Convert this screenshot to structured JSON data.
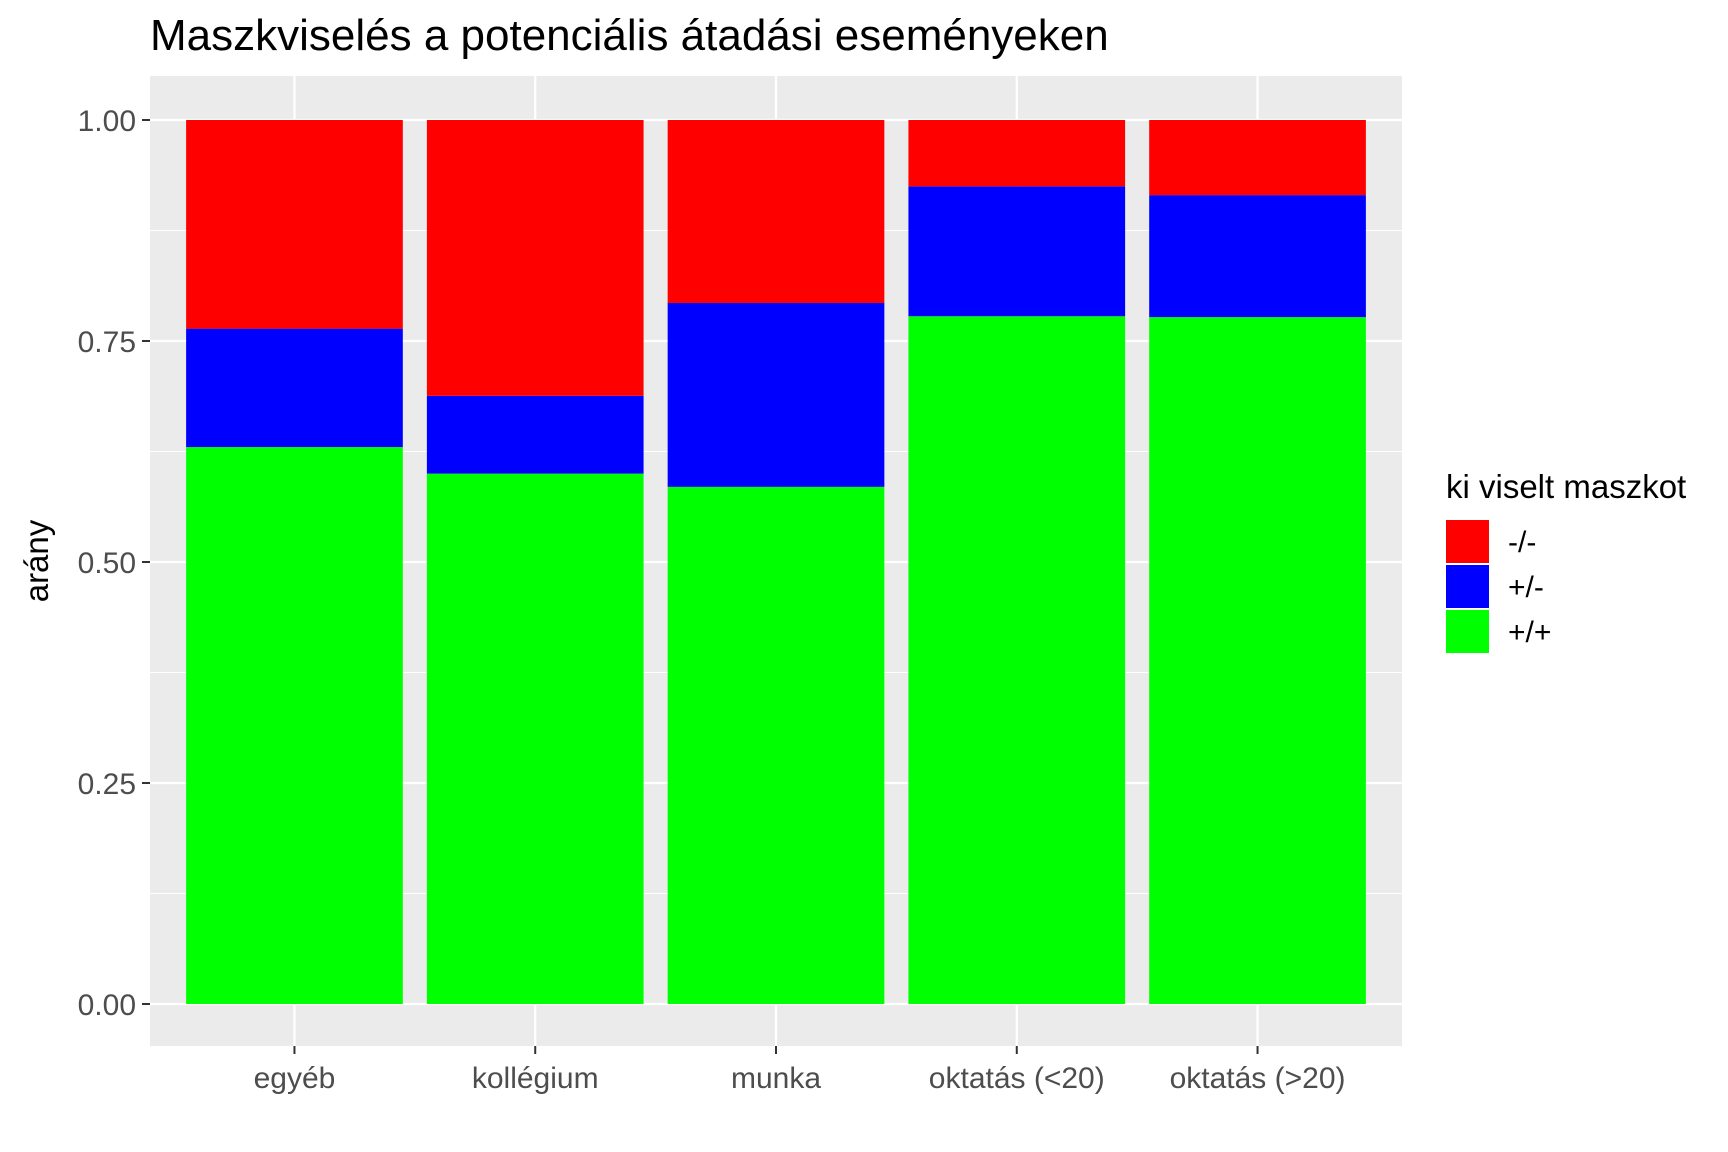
{
  "chart_data": {
    "type": "bar",
    "stacked": true,
    "title": "Maszkviselés a potenciális átadási eseményeken",
    "xlabel": "",
    "ylabel": "arány",
    "ylim": [
      0,
      1
    ],
    "yticks": [
      "0.00",
      "0.25",
      "0.50",
      "0.75",
      "1.00"
    ],
    "categories": [
      "egyéb",
      "kollégium",
      "munka",
      "oktatás (<20)",
      "oktatás (>20)"
    ],
    "grid": true,
    "legend": {
      "title": "ki viselt maszkot",
      "placement": "right"
    },
    "series": [
      {
        "name": "+/+",
        "color": "#00ff00",
        "values": [
          0.63,
          0.6,
          0.585,
          0.778,
          0.777
        ]
      },
      {
        "name": "+/-",
        "color": "#0000ff",
        "values": [
          0.134,
          0.088,
          0.208,
          0.147,
          0.138
        ]
      },
      {
        "name": "-/-",
        "color": "#ff0000",
        "values": [
          0.236,
          0.312,
          0.207,
          0.075,
          0.085
        ]
      }
    ],
    "legend_order": [
      "-/-",
      "+/-",
      "+/+"
    ],
    "panel_background": "#ebebeb",
    "grid_color": "#ffffff"
  }
}
